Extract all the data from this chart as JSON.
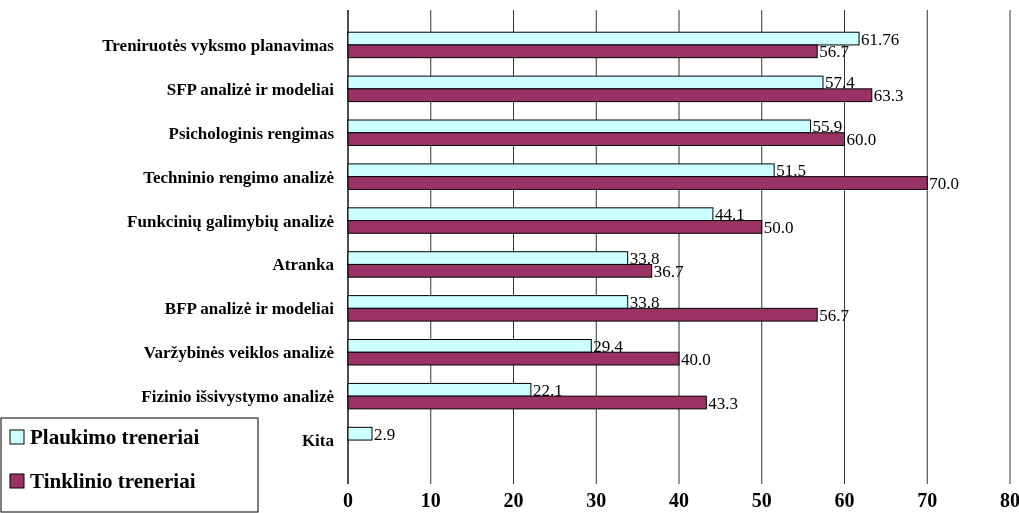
{
  "chart_data": {
    "type": "bar",
    "orientation": "horizontal",
    "categories": [
      "Treniruotės vyksmo planavimas",
      "SFP analizė ir modeliai",
      "Psichologinis rengimas",
      "Techninio rengimo analizė",
      "Funkcinių galimybių analizė",
      "Atranka",
      "BFP analizė ir modeliai",
      "Varžybinės veiklos analizė",
      "Fizinio išsivystymo analizė",
      "Kita"
    ],
    "series": [
      {
        "name": "Plaukimo treneriai",
        "color": "#ccffff",
        "values": [
          61.76,
          57.4,
          55.9,
          51.5,
          44.1,
          33.8,
          33.8,
          29.4,
          22.1,
          2.9
        ],
        "value_labels": [
          "61.76",
          "57.4",
          "55.9",
          "51.5",
          "44.1",
          "33.8",
          "33.8",
          "29.4",
          "22.1",
          "2.9"
        ]
      },
      {
        "name": "Tinklinio treneriai",
        "color": "#993366",
        "values": [
          56.7,
          63.3,
          60.0,
          70.0,
          50.0,
          36.7,
          56.7,
          40.0,
          43.3,
          null
        ],
        "value_labels": [
          "56.7",
          "63.3",
          "60.0",
          "70.0",
          "50.0",
          "36.7",
          "56.7",
          "40.0",
          "43.3",
          null
        ]
      }
    ],
    "xlim": [
      0,
      80
    ],
    "xticks": [
      0,
      10,
      20,
      30,
      40,
      50,
      60,
      70,
      80
    ],
    "grid": "x",
    "legend": "bottom left"
  }
}
